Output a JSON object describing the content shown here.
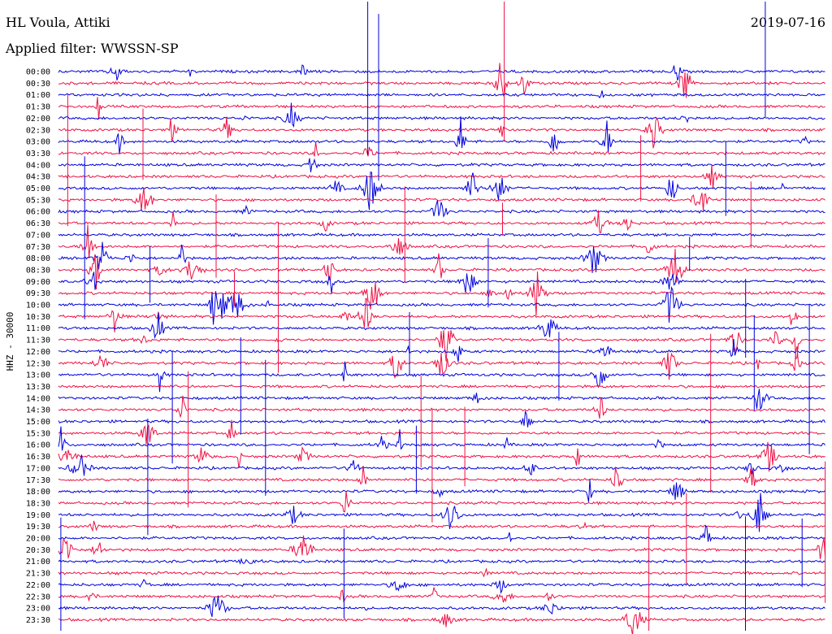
{
  "header": {
    "station": "HL Voula, Attiki",
    "filter": "Applied filter: WWSSN-SP",
    "date": "2019-07-16"
  },
  "chart_data": {
    "type": "line",
    "title": "HL Voula, Attiki",
    "subtitle": "Applied filter: WWSSN-SP",
    "date": "2019-07-16",
    "ylabel": "HHZ - 30000",
    "xlabel": "",
    "y_categories": [
      "00:00",
      "00:30",
      "01:00",
      "01:30",
      "02:00",
      "02:30",
      "03:00",
      "03:30",
      "04:00",
      "04:30",
      "05:00",
      "05:30",
      "06:00",
      "06:30",
      "07:00",
      "07:30",
      "08:00",
      "08:30",
      "09:00",
      "09:30",
      "10:00",
      "10:30",
      "11:00",
      "11:30",
      "12:00",
      "12:30",
      "13:00",
      "13:30",
      "14:00",
      "14:30",
      "15:00",
      "15:30",
      "16:00",
      "16:30",
      "17:00",
      "17:30",
      "18:00",
      "18:30",
      "19:00",
      "19:30",
      "20:00",
      "20:30",
      "21:00",
      "21:30",
      "22:00",
      "22:30",
      "23:00",
      "23:30"
    ],
    "trace_colors": [
      "#0000dd",
      "#ee1144"
    ],
    "legend": "none",
    "grid": false
  }
}
